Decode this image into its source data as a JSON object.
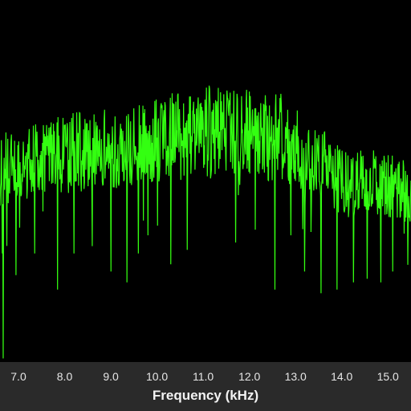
{
  "colors": {
    "background": "#000000",
    "axis_bar": "#2a2a2a",
    "trace": "#33ff11",
    "text": "#e6e6e6"
  },
  "chart_data": {
    "type": "line",
    "title": "",
    "xlabel": "Frequency (kHz)",
    "ylabel": "",
    "xlim": [
      6.6,
      15.5
    ],
    "ylim": [
      0,
      1
    ],
    "x_ticks": [
      "7.0",
      "8.0",
      "9.0",
      "10.0",
      "11.0",
      "12.0",
      "13.0",
      "14.0",
      "15.0"
    ],
    "grid": false,
    "legend": "none",
    "series": [
      {
        "x": [
          6.6,
          6.8,
          7.0,
          7.2,
          7.4,
          7.6,
          7.8,
          8.0,
          8.2,
          8.4,
          8.6,
          8.8,
          9.0,
          9.2,
          9.4,
          9.6,
          9.8,
          10.0,
          10.2,
          10.4,
          10.6,
          10.8,
          11.0,
          11.2,
          11.4,
          11.6,
          11.8,
          12.0,
          12.2,
          12.4,
          12.6,
          12.8,
          13.0,
          13.2,
          13.4,
          13.6,
          13.8,
          14.0,
          14.2,
          14.4,
          14.6,
          14.8,
          15.0,
          15.2,
          15.4,
          15.5
        ],
        "y": [
          0.53,
          0.55,
          0.54,
          0.55,
          0.56,
          0.56,
          0.58,
          0.57,
          0.58,
          0.58,
          0.58,
          0.6,
          0.57,
          0.6,
          0.59,
          0.6,
          0.61,
          0.61,
          0.62,
          0.63,
          0.61,
          0.64,
          0.65,
          0.63,
          0.64,
          0.65,
          0.63,
          0.64,
          0.63,
          0.62,
          0.63,
          0.61,
          0.6,
          0.58,
          0.56,
          0.55,
          0.52,
          0.5,
          0.48,
          0.5,
          0.5,
          0.49,
          0.49,
          0.48,
          0.47,
          0.47
        ],
        "spread": [
          0.1,
          0.1,
          0.1,
          0.1,
          0.1,
          0.1,
          0.1,
          0.11,
          0.11,
          0.11,
          0.11,
          0.11,
          0.11,
          0.11,
          0.11,
          0.11,
          0.11,
          0.12,
          0.12,
          0.12,
          0.12,
          0.12,
          0.13,
          0.13,
          0.13,
          0.13,
          0.12,
          0.12,
          0.12,
          0.12,
          0.12,
          0.12,
          0.11,
          0.11,
          0.11,
          0.1,
          0.1,
          0.09,
          0.09,
          0.09,
          0.09,
          0.09,
          0.09,
          0.09,
          0.09,
          0.09
        ],
        "dips": [
          {
            "x": 6.67,
            "y": 0.01
          },
          {
            "x": 6.65,
            "y": 0.3
          },
          {
            "x": 6.95,
            "y": 0.24
          },
          {
            "x": 7.35,
            "y": 0.3
          },
          {
            "x": 7.85,
            "y": 0.2
          },
          {
            "x": 8.2,
            "y": 0.3
          },
          {
            "x": 8.6,
            "y": 0.32
          },
          {
            "x": 9.0,
            "y": 0.25
          },
          {
            "x": 9.35,
            "y": 0.22
          },
          {
            "x": 9.6,
            "y": 0.3
          },
          {
            "x": 9.8,
            "y": 0.35
          },
          {
            "x": 10.3,
            "y": 0.27
          },
          {
            "x": 10.65,
            "y": 0.31
          },
          {
            "x": 11.3,
            "y": 0.27
          },
          {
            "x": 11.7,
            "y": 0.33
          },
          {
            "x": 12.55,
            "y": 0.2
          },
          {
            "x": 12.9,
            "y": 0.35
          },
          {
            "x": 13.2,
            "y": 0.25
          },
          {
            "x": 13.55,
            "y": 0.19
          },
          {
            "x": 13.9,
            "y": 0.2
          },
          {
            "x": 14.25,
            "y": 0.22
          },
          {
            "x": 14.55,
            "y": 0.23
          },
          {
            "x": 14.85,
            "y": 0.22
          },
          {
            "x": 15.1,
            "y": 0.25
          }
        ],
        "peaks": [
          {
            "x": 10.85,
            "y": 0.7
          },
          {
            "x": 11.3,
            "y": 0.72
          },
          {
            "x": 11.55,
            "y": 0.68
          },
          {
            "x": 11.9,
            "y": 0.66
          },
          {
            "x": 12.2,
            "y": 0.69
          },
          {
            "x": 12.65,
            "y": 0.64
          }
        ]
      }
    ]
  }
}
